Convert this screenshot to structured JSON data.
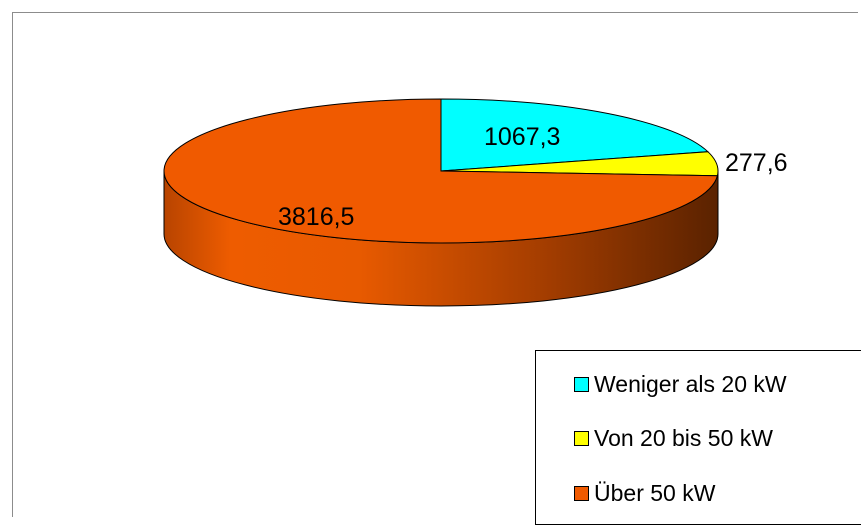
{
  "chart_data": {
    "type": "pie",
    "title": "",
    "series": [
      {
        "name": "Weniger als 20 kW",
        "value": 1067.3,
        "label": "1067,3",
        "color": "#00ffff"
      },
      {
        "name": "Von 20 bis 50 kW",
        "value": 277.6,
        "label": "277,6",
        "color": "#ffff00"
      },
      {
        "name": "Über 50 kW",
        "value": 3816.5,
        "label": "3816,5",
        "color": "#f05a00"
      }
    ],
    "style": "3d",
    "legend_position": "bottom-right",
    "data_labels": true
  }
}
